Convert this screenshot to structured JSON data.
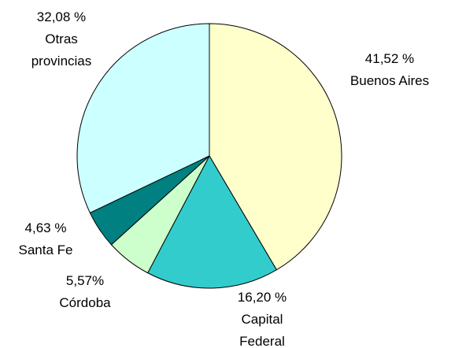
{
  "chart_data": {
    "type": "pie",
    "categories": [
      "Buenos Aires",
      "Capital Federal",
      "Córdoba",
      "Santa Fe",
      "Otras provincias"
    ],
    "values": [
      41.52,
      16.2,
      5.57,
      4.63,
      32.08
    ],
    "value_labels": [
      "41,52 %",
      "16,20 %",
      "5,57%",
      "4,63 %",
      "32,08 %"
    ],
    "colors": [
      "#ffffcc",
      "#33cccc",
      "#ccffcc",
      "#008080",
      "#ccffff"
    ]
  }
}
